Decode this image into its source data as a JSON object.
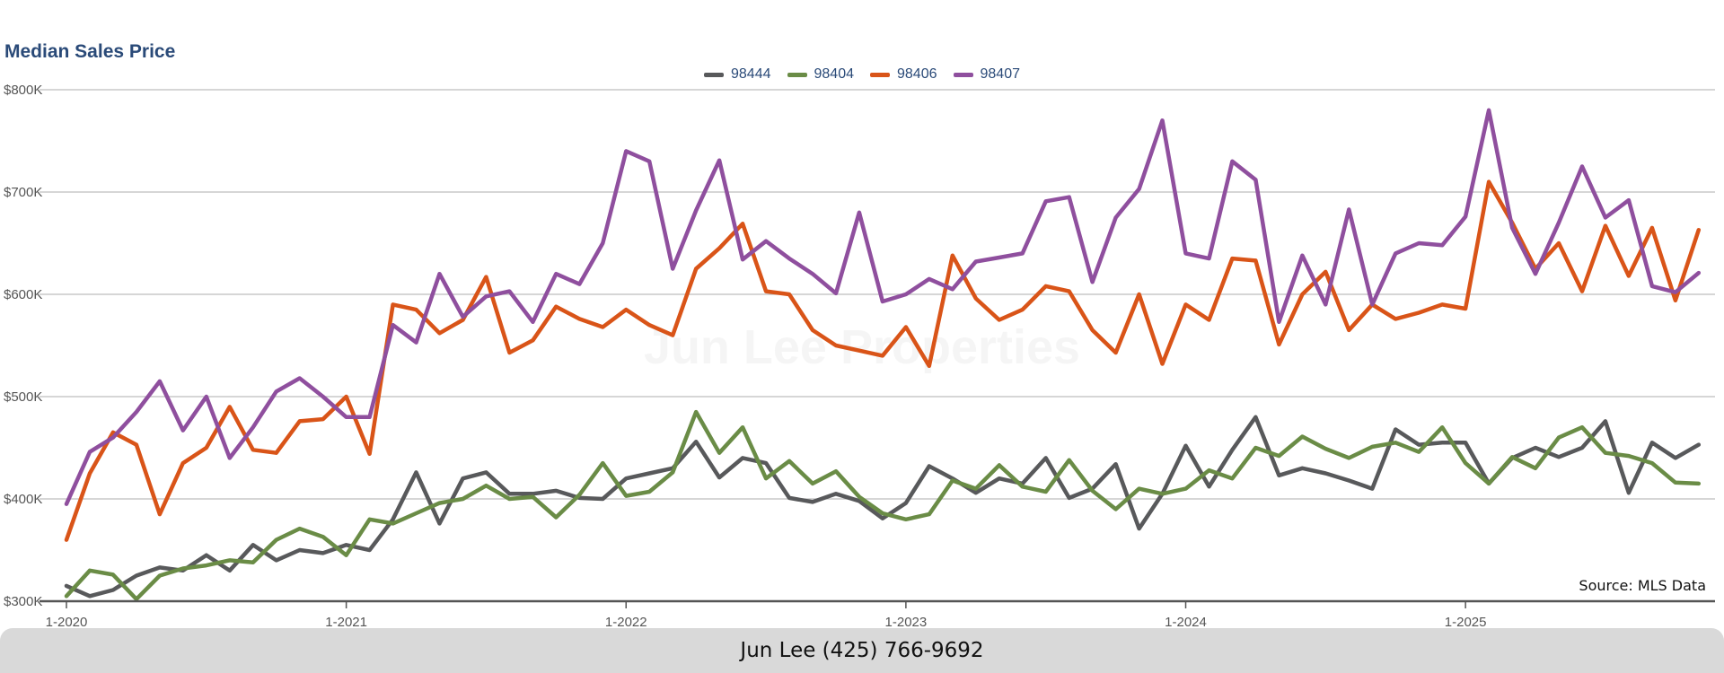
{
  "chart_data": {
    "type": "line",
    "title": "Median Sales Price",
    "xlabel": "",
    "ylabel": "",
    "ylim": [
      300000,
      800000
    ],
    "y_ticks": [
      {
        "value": 300000,
        "label": "$300K"
      },
      {
        "value": 400000,
        "label": "$400K"
      },
      {
        "value": 500000,
        "label": "$500K"
      },
      {
        "value": 600000,
        "label": "$600K"
      },
      {
        "value": 700000,
        "label": "$700K"
      },
      {
        "value": 800000,
        "label": "$800K"
      }
    ],
    "x_ticks": [
      {
        "index": 0,
        "label": "1-2020"
      },
      {
        "index": 12,
        "label": "1-2021"
      },
      {
        "index": 24,
        "label": "1-2022"
      },
      {
        "index": 36,
        "label": "1-2023"
      },
      {
        "index": 48,
        "label": "1-2024"
      },
      {
        "index": 60,
        "label": "1-2025"
      }
    ],
    "x_range": [
      0,
      70.7
    ],
    "legend_position": "top-center",
    "grid": true,
    "series": [
      {
        "name": "98444",
        "color": "#58595b",
        "values": [
          315000,
          305000,
          311000,
          325000,
          333000,
          330000,
          345000,
          330000,
          355000,
          340000,
          350000,
          347000,
          355000,
          350000,
          380000,
          426000,
          376000,
          420000,
          426000,
          405000,
          405000,
          408000,
          401000,
          400000,
          420000,
          425000,
          430000,
          456000,
          421000,
          440000,
          435000,
          401000,
          397000,
          405000,
          398000,
          381000,
          396000,
          432000,
          420000,
          406000,
          420000,
          415000,
          440000,
          401000,
          410000,
          434000,
          371000,
          405000,
          452000,
          412000,
          448000,
          480000,
          423000,
          430000,
          425000,
          418000,
          410000,
          468000,
          453000,
          455000,
          455000,
          415000,
          440000,
          450000,
          441000,
          450000,
          476000,
          406000,
          455000,
          440000,
          453000
        ]
      },
      {
        "name": "98404",
        "color": "#6a8c46",
        "values": [
          305000,
          330000,
          326000,
          302000,
          325000,
          332000,
          335000,
          340000,
          338000,
          360000,
          371000,
          363000,
          345000,
          380000,
          376000,
          386000,
          396000,
          400000,
          413000,
          400000,
          402000,
          382000,
          404000,
          435000,
          403000,
          407000,
          426000,
          485000,
          445000,
          470000,
          420000,
          437000,
          415000,
          427000,
          402000,
          386000,
          380000,
          385000,
          418000,
          410000,
          433000,
          412000,
          407000,
          438000,
          408000,
          390000,
          410000,
          405000,
          410000,
          428000,
          420000,
          450000,
          442000,
          461000,
          449000,
          440000,
          451000,
          455000,
          446000,
          470000,
          435000,
          415000,
          441000,
          430000,
          460000,
          470000,
          445000,
          442000,
          435000,
          416000,
          415000
        ]
      },
      {
        "name": "98406",
        "color": "#d95418",
        "values": [
          360000,
          425000,
          465000,
          453000,
          385000,
          435000,
          450000,
          490000,
          448000,
          445000,
          476000,
          478000,
          500000,
          444000,
          590000,
          585000,
          562000,
          575000,
          617000,
          543000,
          555000,
          588000,
          576000,
          568000,
          585000,
          570000,
          560000,
          625000,
          645000,
          669000,
          603000,
          600000,
          565000,
          550000,
          545000,
          540000,
          568000,
          530000,
          638000,
          596000,
          575000,
          585000,
          608000,
          603000,
          565000,
          543000,
          600000,
          532000,
          590000,
          575000,
          635000,
          633000,
          551000,
          600000,
          622000,
          565000,
          590000,
          576000,
          582000,
          590000,
          586000,
          710000,
          670000,
          625000,
          650000,
          603000,
          667000,
          618000,
          665000,
          594000,
          663000
        ]
      },
      {
        "name": "98407",
        "color": "#8f4f9e",
        "values": [
          395000,
          446000,
          460000,
          485000,
          515000,
          467000,
          500000,
          440000,
          470000,
          505000,
          518000,
          500000,
          480000,
          480000,
          570000,
          553000,
          620000,
          578000,
          598000,
          603000,
          573000,
          620000,
          610000,
          650000,
          740000,
          730000,
          625000,
          682000,
          731000,
          634000,
          652000,
          635000,
          620000,
          601000,
          680000,
          593000,
          600000,
          615000,
          605000,
          632000,
          636000,
          640000,
          691000,
          695000,
          612000,
          675000,
          703000,
          770000,
          640000,
          635000,
          730000,
          712000,
          573000,
          638000,
          590000,
          683000,
          590000,
          640000,
          650000,
          648000,
          676000,
          780000,
          665000,
          620000,
          670000,
          725000,
          675000,
          692000,
          608000,
          602000,
          621000
        ]
      }
    ]
  },
  "watermark": "Jun Lee Properties",
  "source_note": "Source: MLS Data",
  "footer_text": "Jun Lee (425) 766-9692"
}
